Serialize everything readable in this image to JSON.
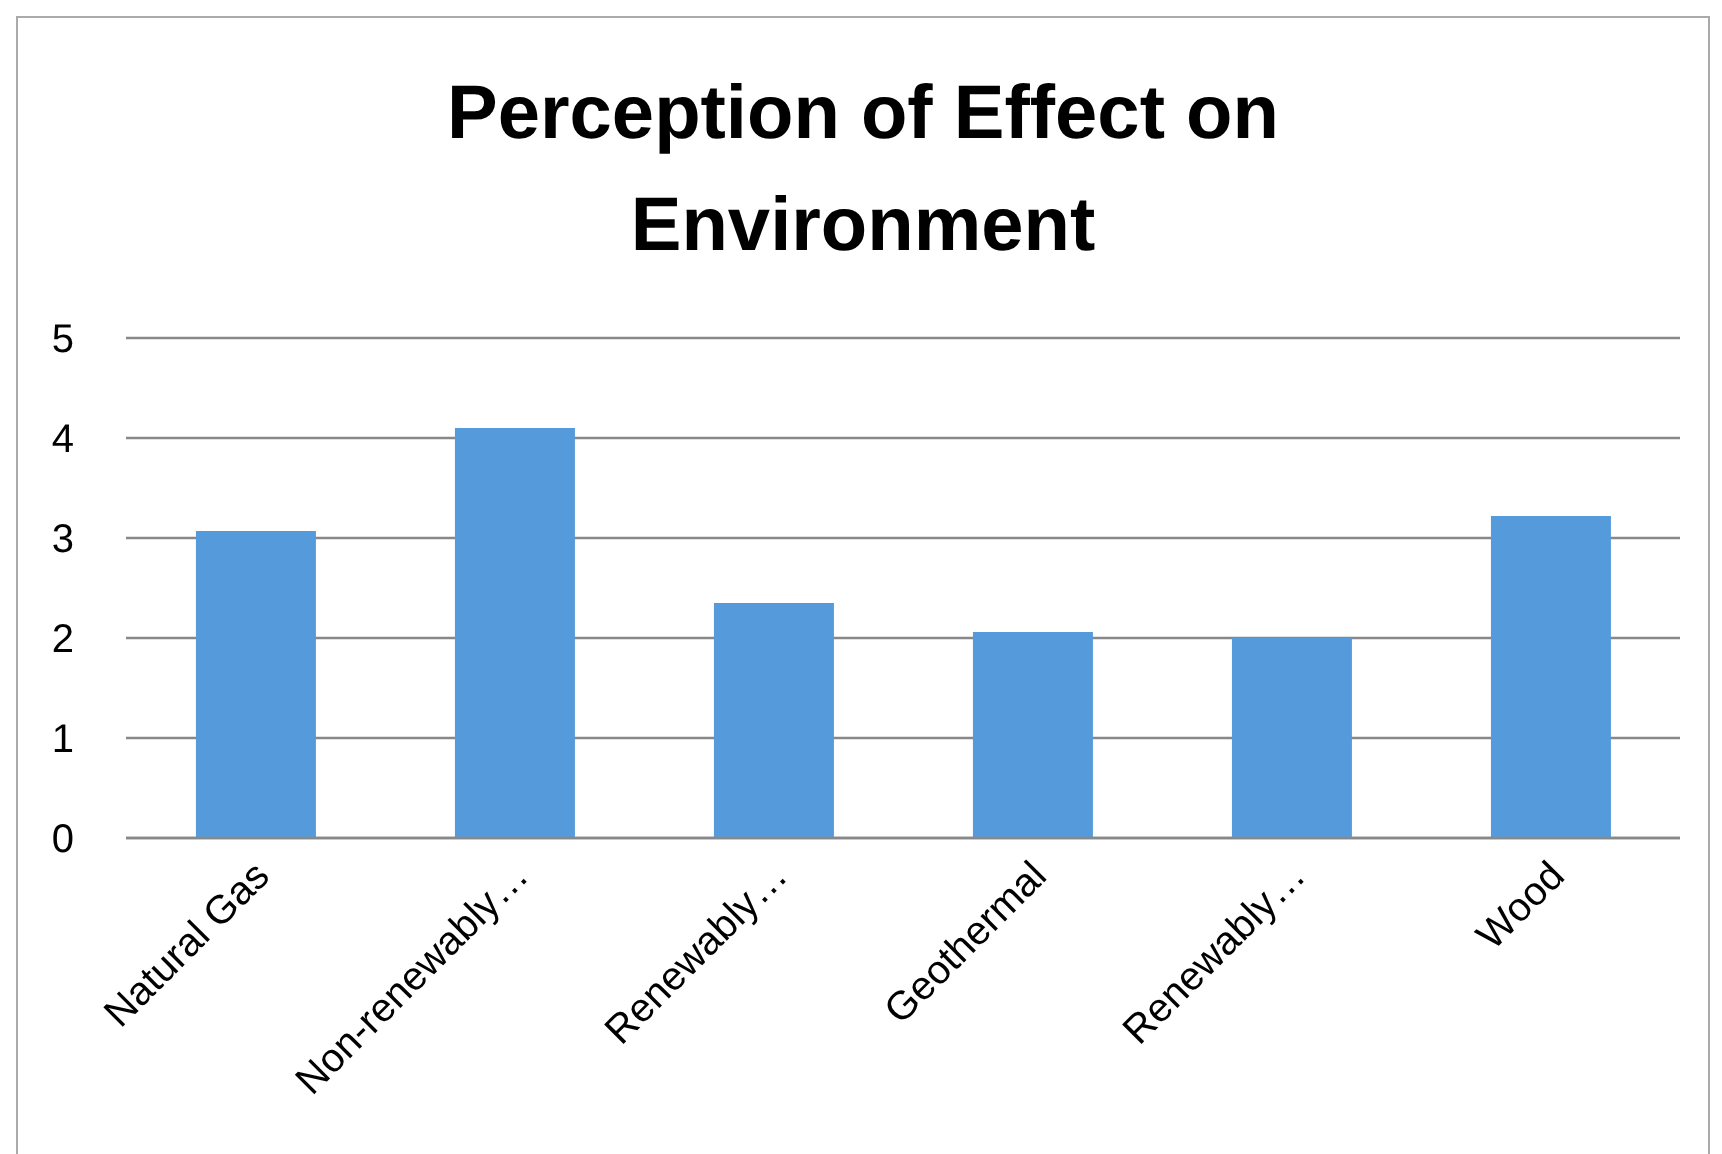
{
  "chart_data": {
    "type": "bar",
    "title": "Perception of Effect on Environment",
    "categories": [
      "Natural Gas",
      "Non-renewably…",
      "Renewably…",
      "Geothermal",
      "Renewably…",
      "Wood"
    ],
    "values": [
      3.07,
      4.1,
      2.35,
      2.06,
      2.0,
      3.22
    ],
    "color": "#559bdc",
    "ylim": [
      0,
      5
    ],
    "yticks": [
      0,
      1,
      2,
      3,
      4,
      5
    ],
    "grid": "y",
    "legend": false
  }
}
